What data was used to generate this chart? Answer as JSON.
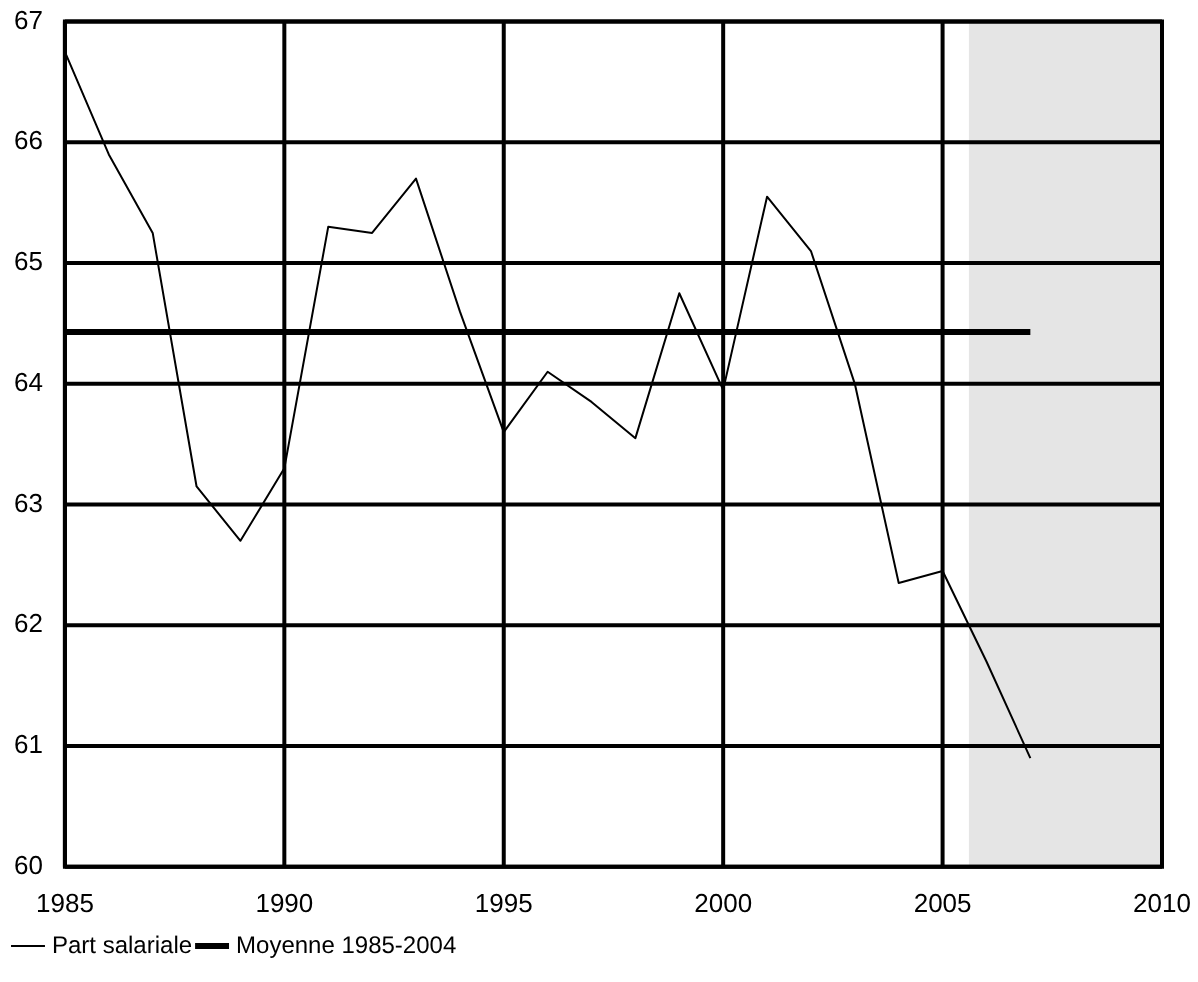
{
  "chart_data": {
    "type": "line",
    "xlim": [
      1985,
      2010
    ],
    "xticks": [
      1985,
      1990,
      1995,
      2000,
      2005,
      2010
    ],
    "ylim": [
      60,
      67
    ],
    "yticks": [
      60,
      61,
      62,
      63,
      64,
      65,
      66,
      67
    ],
    "grid": true,
    "legend": "bottom left",
    "marker": "none",
    "line_style": "solid",
    "series": [
      {
        "name": "Part salariale",
        "color": "#000000",
        "x": [
          1985,
          1986,
          1987,
          1988,
          1989,
          1990,
          1991,
          1992,
          1993,
          1994,
          1995,
          1996,
          1997,
          1998,
          1999,
          2000,
          2001,
          2002,
          2003,
          2004,
          2005,
          2006,
          2007
        ],
        "values": [
          66.75,
          65.9,
          65.25,
          63.15,
          62.7,
          63.3,
          65.3,
          65.25,
          65.7,
          64.6,
          63.6,
          64.1,
          63.85,
          63.55,
          64.75,
          63.95,
          65.55,
          65.1,
          64.0,
          62.35,
          62.45,
          61.7,
          60.9
        ]
      },
      {
        "name": "Moyenne 1985-2004",
        "color": "#000000",
        "x": [
          1985,
          2007
        ],
        "values": [
          64.43,
          64.43
        ]
      }
    ],
    "bands": [
      {
        "axis": "x",
        "from": 2005.6,
        "to": 2010,
        "color": "#e5e5e5"
      }
    ]
  }
}
